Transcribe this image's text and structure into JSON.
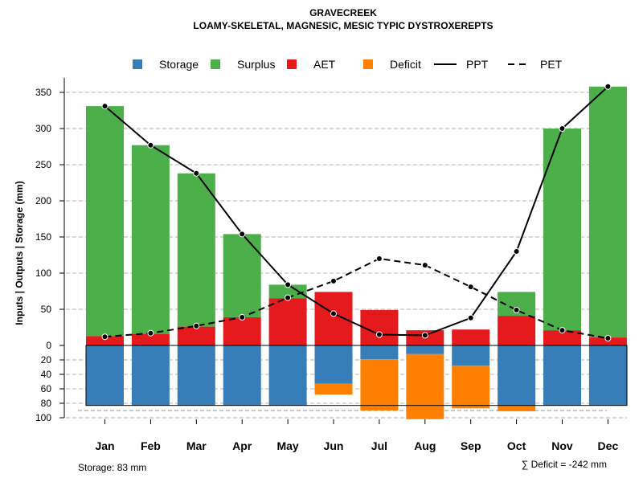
{
  "chart_data": {
    "type": "bar",
    "title": "GRAVECREEK",
    "subtitle": "LOAMY-SKELETAL, MAGNESIC, MESIC TYPIC DYSTROXEREPTS",
    "ylabel": "Inputs | Outputs | Storage    (mm)",
    "categories": [
      "Jan",
      "Feb",
      "Mar",
      "Apr",
      "May",
      "Jun",
      "Jul",
      "Aug",
      "Sep",
      "Oct",
      "Nov",
      "Dec"
    ],
    "ylim_upper": [
      0,
      370
    ],
    "ylim_lower": [
      0,
      100
    ],
    "yticks_upper": [
      "0",
      "50",
      "100",
      "150",
      "200",
      "250",
      "300",
      "350"
    ],
    "yticks_lower": [
      "20",
      "40",
      "60",
      "80",
      "100"
    ],
    "legend": [
      "Storage",
      "Surplus",
      "AET",
      "Deficit",
      "PPT",
      "PET"
    ],
    "series": [
      {
        "name": "AET",
        "values": [
          13,
          16,
          26,
          39,
          65,
          74,
          49,
          21,
          22,
          41,
          21,
          11
        ]
      },
      {
        "name": "Surplus",
        "values": [
          318,
          261,
          212,
          115,
          19,
          0,
          0,
          0,
          0,
          33,
          279,
          347
        ]
      },
      {
        "name": "Storage",
        "values": [
          83,
          83,
          83,
          83,
          83,
          53,
          19,
          12,
          28,
          83,
          83,
          83
        ]
      },
      {
        "name": "Deficit",
        "values": [
          0,
          0,
          0,
          0,
          0,
          15,
          71,
          90,
          59,
          8,
          0,
          0
        ]
      },
      {
        "name": "PPT",
        "values": [
          331,
          277,
          238,
          154,
          84,
          44,
          15,
          14,
          38,
          130,
          300,
          358
        ]
      },
      {
        "name": "PET",
        "values": [
          12,
          17,
          27,
          39,
          66,
          89,
          120,
          111,
          81,
          49,
          21,
          10
        ]
      }
    ],
    "storage_capacity": 83,
    "storage_note": "Storage: 83 mm",
    "deficit_note": "∑ Deficit = -242 mm",
    "colors": {
      "Storage": "#377EB8",
      "Surplus": "#4DAF4A",
      "AET": "#E41A1C",
      "Deficit": "#FF7F00",
      "PPT": "#000000",
      "PET": "#000000"
    }
  }
}
